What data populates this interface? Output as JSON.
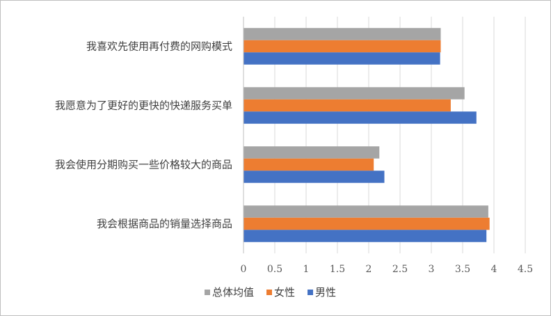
{
  "chart_data": {
    "type": "bar",
    "orientation": "horizontal",
    "categories": [
      "我喜欢先使用再付费的网购模式",
      "我愿意为了更好的更快的快递服务买单",
      "我会使用分期购买一些价格较大的商品",
      "我会根据商品的销量选择商品"
    ],
    "series": [
      {
        "name": "总体均值",
        "color": "#a5a5a5",
        "values": [
          3.15,
          3.53,
          2.17,
          3.91
        ]
      },
      {
        "name": "女性",
        "color": "#ed7d31",
        "values": [
          3.15,
          3.31,
          2.08,
          3.93
        ]
      },
      {
        "name": "男性",
        "color": "#4472c4",
        "values": [
          3.14,
          3.72,
          2.25,
          3.88
        ]
      }
    ],
    "xlim": [
      0,
      4.5
    ],
    "x_ticks": [
      "0",
      "0.5",
      "1",
      "1.5",
      "2",
      "2.5",
      "3",
      "3.5",
      "4",
      "4.5"
    ],
    "grid": "vertical",
    "legend_position": "bottom",
    "legend_order": [
      "总体均值",
      "女性",
      "男性"
    ]
  }
}
